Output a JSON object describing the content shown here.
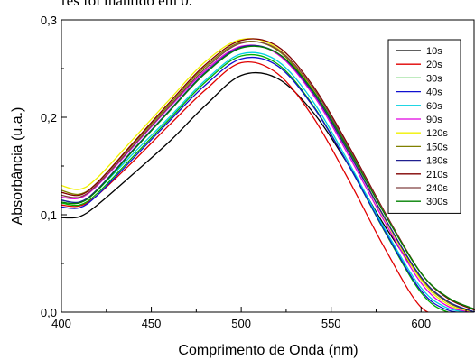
{
  "caption_fragment": "res foi mantido em 0.",
  "chart_data": {
    "type": "line",
    "xlabel": "Comprimento de Onda (nm)",
    "ylabel": "Absorbância (u.a.)",
    "xlim": [
      400,
      630
    ],
    "ylim": [
      0.0,
      0.3
    ],
    "xticks": [
      400,
      450,
      500,
      550,
      600
    ],
    "yticks": [
      0.0,
      0.1,
      0.2,
      0.3
    ],
    "ytick_labels": [
      "0,0",
      "0,1",
      "0,2",
      "0,3"
    ],
    "grid": false,
    "legend_position": "top-right",
    "x": [
      400,
      410,
      420,
      440,
      460,
      480,
      500,
      520,
      540,
      560,
      580,
      600,
      615,
      630
    ],
    "series": [
      {
        "name": "10s",
        "color": "#000000",
        "values": [
          0.097,
          0.098,
          0.11,
          0.142,
          0.175,
          0.212,
          0.243,
          0.24,
          0.205,
          0.15,
          0.088,
          0.035,
          0.01,
          0.0
        ]
      },
      {
        "name": "20s",
        "color": "#e00000",
        "values": [
          0.11,
          0.109,
          0.12,
          0.155,
          0.192,
          0.228,
          0.256,
          0.245,
          0.2,
          0.135,
          0.065,
          0.005,
          0.0,
          0.0
        ]
      },
      {
        "name": "30s",
        "color": "#00b000",
        "values": [
          0.112,
          0.11,
          0.122,
          0.16,
          0.198,
          0.236,
          0.263,
          0.255,
          0.212,
          0.15,
          0.082,
          0.02,
          0.0,
          0.0
        ]
      },
      {
        "name": "40s",
        "color": "#1010d0",
        "values": [
          0.108,
          0.107,
          0.12,
          0.158,
          0.196,
          0.233,
          0.26,
          0.253,
          0.211,
          0.15,
          0.083,
          0.022,
          0.002,
          0.0
        ]
      },
      {
        "name": "60s",
        "color": "#00d0e0",
        "values": [
          0.115,
          0.113,
          0.125,
          0.163,
          0.2,
          0.238,
          0.265,
          0.258,
          0.216,
          0.153,
          0.085,
          0.025,
          0.004,
          0.0
        ]
      },
      {
        "name": "90s",
        "color": "#e000e0",
        "values": [
          0.118,
          0.117,
          0.13,
          0.17,
          0.21,
          0.248,
          0.273,
          0.265,
          0.223,
          0.16,
          0.092,
          0.03,
          0.006,
          0.0
        ]
      },
      {
        "name": "120s",
        "color": "#f0f000",
        "values": [
          0.13,
          0.126,
          0.138,
          0.178,
          0.218,
          0.257,
          0.28,
          0.271,
          0.228,
          0.164,
          0.095,
          0.033,
          0.008,
          0.0
        ]
      },
      {
        "name": "150s",
        "color": "#808000",
        "values": [
          0.125,
          0.121,
          0.133,
          0.173,
          0.213,
          0.252,
          0.277,
          0.269,
          0.227,
          0.164,
          0.096,
          0.035,
          0.01,
          0.0
        ]
      },
      {
        "name": "180s",
        "color": "#202090",
        "values": [
          0.115,
          0.113,
          0.126,
          0.167,
          0.207,
          0.246,
          0.272,
          0.266,
          0.225,
          0.163,
          0.096,
          0.036,
          0.011,
          0.0
        ]
      },
      {
        "name": "210s",
        "color": "#800000",
        "values": [
          0.123,
          0.12,
          0.133,
          0.174,
          0.215,
          0.254,
          0.279,
          0.273,
          0.232,
          0.17,
          0.102,
          0.04,
          0.014,
          0.002
        ]
      },
      {
        "name": "240s",
        "color": "#804040",
        "values": [
          0.12,
          0.118,
          0.131,
          0.171,
          0.211,
          0.25,
          0.276,
          0.27,
          0.23,
          0.168,
          0.101,
          0.04,
          0.015,
          0.003
        ]
      },
      {
        "name": "300s",
        "color": "#008000",
        "values": [
          0.113,
          0.112,
          0.125,
          0.166,
          0.206,
          0.245,
          0.271,
          0.266,
          0.227,
          0.166,
          0.1,
          0.04,
          0.015,
          0.003
        ]
      }
    ]
  }
}
